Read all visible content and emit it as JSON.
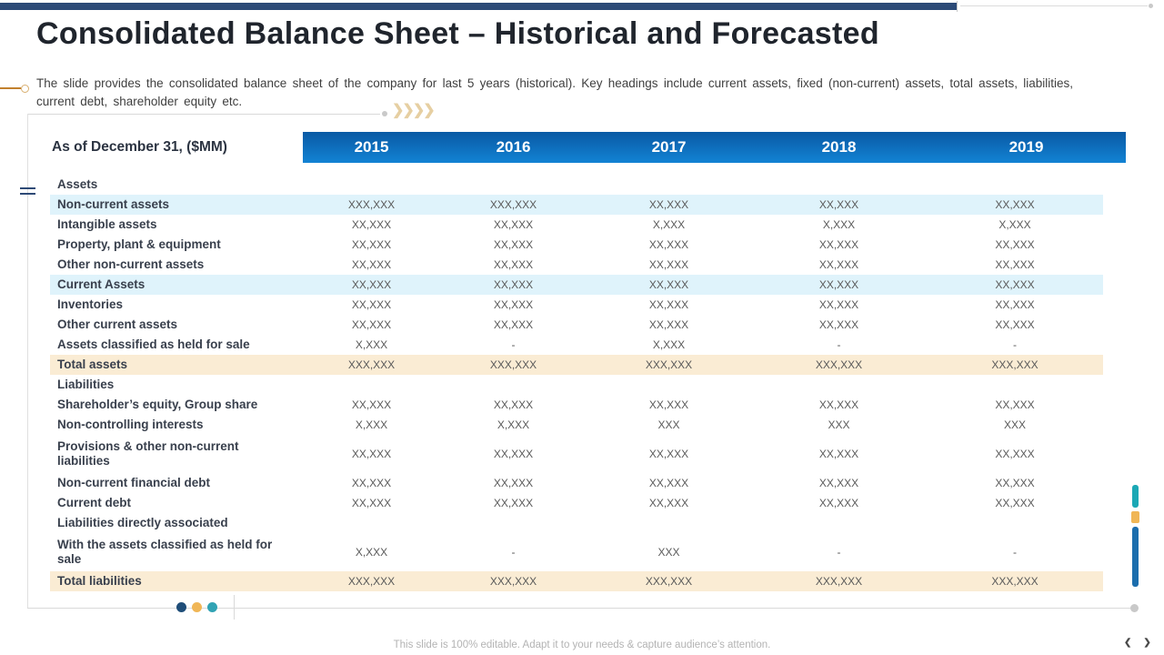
{
  "slide": {
    "title": "Consolidated Balance Sheet – Historical and Forecasted",
    "subtitle": "The slide provides the consolidated balance sheet of the company for last 5 years (historical). Key headings include current assets, fixed (non-current) assets, total assets, liabilities, current debt, shareholder equity etc.",
    "footer": "This slide is 100% editable. Adapt it to your needs & capture audience’s attention.",
    "chevrons": "❯❯❯❯"
  },
  "nav": {
    "prev": "❮",
    "next": "❯"
  },
  "palette": {
    "top_bar_navy": "#2c4a77",
    "header_blue_top": "#0a59a4",
    "header_blue_bottom": "#1283d4",
    "band_light_blue": "#dff3fb",
    "band_tan": "#faecd4",
    "accent_orange": "#f0b656",
    "accent_teal": "#1ba8b5",
    "accent_blue": "#1b6dad",
    "bullet_orange": "#c2802e"
  },
  "table": {
    "corner_label": "As of December 31, ($MM)",
    "years": [
      "2015",
      "2016",
      "2017",
      "2018",
      "2019"
    ],
    "rows": [
      {
        "label": "Assets",
        "type": "section",
        "values": [
          "",
          "",
          "",
          "",
          ""
        ]
      },
      {
        "label": "Non-current assets",
        "type": "band",
        "values": [
          "XXX,XXX",
          "XXX,XXX",
          "XX,XXX",
          "XX,XXX",
          "XX,XXX"
        ]
      },
      {
        "label": "Intangible assets",
        "type": "plain",
        "values": [
          "XX,XXX",
          "XX,XXX",
          "X,XXX",
          "X,XXX",
          "X,XXX"
        ]
      },
      {
        "label": "Property, plant & equipment",
        "type": "plain",
        "values": [
          "XX,XXX",
          "XX,XXX",
          "XX,XXX",
          "XX,XXX",
          "XX,XXX"
        ]
      },
      {
        "label": "Other non-current assets",
        "type": "plain",
        "values": [
          "XX,XXX",
          "XX,XXX",
          "XX,XXX",
          "XX,XXX",
          "XX,XXX"
        ]
      },
      {
        "label": "Current Assets",
        "type": "band",
        "values": [
          "XX,XXX",
          "XX,XXX",
          "XX,XXX",
          "XX,XXX",
          "XX,XXX"
        ]
      },
      {
        "label": "Inventories",
        "type": "plain",
        "values": [
          "XX,XXX",
          "XX,XXX",
          "XX,XXX",
          "XX,XXX",
          "XX,XXX"
        ]
      },
      {
        "label": "Other current assets",
        "type": "plain",
        "values": [
          "XX,XXX",
          "XX,XXX",
          "XX,XXX",
          "XX,XXX",
          "XX,XXX"
        ]
      },
      {
        "label": "Assets classified as held for sale",
        "type": "plain",
        "values": [
          "X,XXX",
          "-",
          "X,XXX",
          "-",
          "-"
        ]
      },
      {
        "label": "Total assets",
        "type": "total",
        "values": [
          "XXX,XXX",
          "XXX,XXX",
          "XXX,XXX",
          "XXX,XXX",
          "XXX,XXX"
        ]
      },
      {
        "label": "Liabilities",
        "type": "section",
        "values": [
          "",
          "",
          "",
          "",
          ""
        ]
      },
      {
        "label": "Shareholder’s equity, Group share",
        "type": "plain",
        "values": [
          "XX,XXX",
          "XX,XXX",
          "XX,XXX",
          "XX,XXX",
          "XX,XXX"
        ]
      },
      {
        "label": "Non-controlling interests",
        "type": "plain",
        "values": [
          "X,XXX",
          "X,XXX",
          "XXX",
          "XXX",
          "XXX"
        ]
      },
      {
        "label": "Provisions & other non-current liabilities",
        "type": "plain tall",
        "values": [
          "XX,XXX",
          "XX,XXX",
          "XX,XXX",
          "XX,XXX",
          "XX,XXX"
        ]
      },
      {
        "label": "Non-current financial debt",
        "type": "plain",
        "values": [
          "XX,XXX",
          "XX,XXX",
          "XX,XXX",
          "XX,XXX",
          "XX,XXX"
        ]
      },
      {
        "label": "Current debt",
        "type": "plain",
        "values": [
          "XX,XXX",
          "XX,XXX",
          "XX,XXX",
          "XX,XXX",
          "XX,XXX"
        ]
      },
      {
        "label": "Liabilities directly associated",
        "type": "section",
        "values": [
          "",
          "",
          "",
          "",
          ""
        ]
      },
      {
        "label": "With the assets classified as held for sale",
        "type": "plain tall",
        "values": [
          "X,XXX",
          "-",
          "XXX",
          "-",
          "-"
        ]
      },
      {
        "label": "Total liabilities",
        "type": "total",
        "values": [
          "XXX,XXX",
          "XXX,XXX",
          "XXX,XXX",
          "XXX,XXX",
          "XXX,XXX"
        ]
      }
    ]
  }
}
